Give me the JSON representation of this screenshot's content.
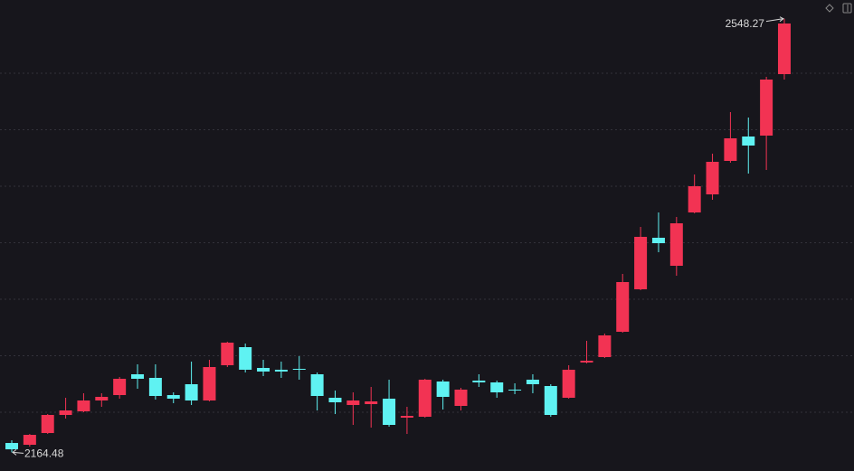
{
  "chart_data": {
    "type": "candlestick",
    "up_color": "#f23353",
    "down_color": "#5ff2f2",
    "ylim": [
      2148,
      2564.8
    ],
    "yticks": [
      2200,
      2250,
      2300,
      2350,
      2400,
      2450,
      2500
    ],
    "grid": true,
    "open": [
      2172.8,
      2171.2,
      2181.6,
      2197.6,
      2200.8,
      2210.4,
      2215.2,
      2233.6,
      2230.4,
      2215.2,
      2224.8,
      2210.4,
      2241.6,
      2257.6,
      2239.2,
      2237.6,
      2238.4,
      2233.6,
      2212.8,
      2206.4,
      2207.2,
      2212.0,
      2195.2,
      2196.0,
      2227.2,
      2205.6,
      2228.0,
      2226.4,
      2220.0,
      2228.8,
      2223.2,
      2212.8,
      2244.0,
      2248.8,
      2271.2,
      2308.8,
      2354.4,
      2329.6,
      2376.8,
      2392.8,
      2422.4,
      2444.0,
      2444.8,
      2499.2
    ],
    "high": [
      2175.2,
      2180.8,
      2198.4,
      2212.8,
      2216.8,
      2216.8,
      2231.2,
      2242.4,
      2242.4,
      2217.6,
      2244.8,
      2246.4,
      2262.4,
      2260.8,
      2246.4,
      2244.8,
      2249.6,
      2235.2,
      2219.2,
      2217.6,
      2222.4,
      2228.8,
      2204.8,
      2229.6,
      2228.8,
      2221.6,
      2233.6,
      2228.0,
      2225.6,
      2233.6,
      2224.8,
      2241.6,
      2263.2,
      2269.6,
      2322.4,
      2364.0,
      2376.8,
      2372.8,
      2410.4,
      2428.8,
      2465.6,
      2460.8,
      2496.8,
      2548.27
    ],
    "low": [
      2164.48,
      2169.6,
      2180.8,
      2194.4,
      2200.0,
      2204.8,
      2212.0,
      2220.8,
      2211.2,
      2208.0,
      2206.4,
      2209.6,
      2240.0,
      2235.2,
      2232.0,
      2230.4,
      2228.8,
      2201.6,
      2198.4,
      2188.8,
      2186.4,
      2187.2,
      2180.8,
      2195.2,
      2202.4,
      2201.6,
      2222.4,
      2212.8,
      2216.0,
      2216.8,
      2196.0,
      2212.0,
      2243.2,
      2248.0,
      2270.4,
      2308.0,
      2341.6,
      2320.8,
      2376.0,
      2388.0,
      2420.8,
      2411.2,
      2414.4,
      2494.4
    ],
    "close": [
      2167.2,
      2180.0,
      2197.6,
      2201.6,
      2210.4,
      2213.6,
      2229.6,
      2229.6,
      2214.4,
      2212.0,
      2210.4,
      2240.0,
      2261.6,
      2237.6,
      2236.0,
      2236.0,
      2237.6,
      2214.4,
      2208.8,
      2210.4,
      2209.6,
      2188.8,
      2196.8,
      2228.8,
      2213.6,
      2220.0,
      2226.4,
      2217.6,
      2219.2,
      2224.8,
      2197.6,
      2237.6,
      2245.6,
      2268.0,
      2315.2,
      2355.2,
      2349.6,
      2367.2,
      2400.0,
      2421.6,
      2442.4,
      2436.0,
      2494.4,
      2544.0
    ],
    "annotations": [
      {
        "label": "2548.27",
        "value": 2548.27
      },
      {
        "label": "2164.48",
        "value": 2164.48
      }
    ]
  }
}
